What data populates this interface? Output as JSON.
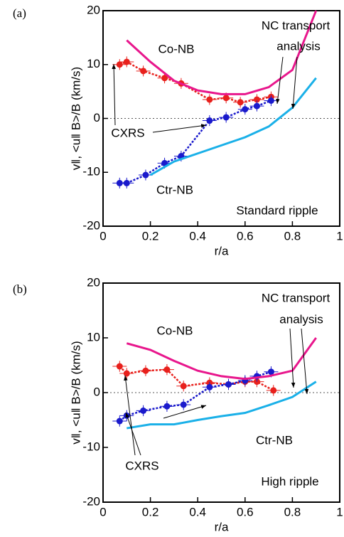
{
  "chart_data": [
    {
      "type": "line",
      "panel_label": "(a)",
      "xlabel": "r/a",
      "ylabel": "v‖, <u‖ B>/B (km/s)",
      "xlim": [
        0,
        1
      ],
      "ylim": [
        -20,
        20
      ],
      "xticks": [
        0,
        0.2,
        0.4,
        0.6,
        0.8,
        1
      ],
      "yticks": [
        -20,
        -10,
        0,
        10,
        20
      ],
      "zero_line": true,
      "annotations": [
        "Co-NB",
        "NC transport",
        "analysis",
        "CXRS",
        "Ctr-NB",
        "Standard ripple"
      ],
      "series": [
        {
          "kind": "errorbar",
          "color": "#e8201c",
          "x": [
            0.07,
            0.1,
            0.17,
            0.26,
            0.33,
            0.45,
            0.52,
            0.58,
            0.65,
            0.71
          ],
          "values": [
            10,
            10.5,
            8.8,
            7.5,
            6.5,
            3.5,
            3.8,
            3,
            3.5,
            4
          ],
          "xerr": 0.03,
          "yerr": 1
        },
        {
          "kind": "errorbar",
          "color": "#1a1acc",
          "x": [
            0.07,
            0.1,
            0.18,
            0.26,
            0.33,
            0.45,
            0.52,
            0.6,
            0.65,
            0.71
          ],
          "values": [
            -12,
            -12,
            -10.5,
            -8.3,
            -7,
            -0.4,
            0.2,
            1.7,
            2.3,
            3.3
          ],
          "xerr": 0.03,
          "yerr": 1
        },
        {
          "kind": "line",
          "color": "#e8168c",
          "x": [
            0.1,
            0.2,
            0.3,
            0.4,
            0.5,
            0.6,
            0.7,
            0.8,
            0.9
          ],
          "values": [
            14.5,
            10.5,
            7,
            5.2,
            4.5,
            4.5,
            5.8,
            9,
            20
          ]
        },
        {
          "kind": "line",
          "color": "#1ab0e8",
          "x": [
            0.2,
            0.3,
            0.4,
            0.5,
            0.6,
            0.7,
            0.8,
            0.9
          ],
          "values": [
            -10.5,
            -8,
            -6.5,
            -5,
            -3.5,
            -1.5,
            2,
            7.5
          ]
        }
      ]
    },
    {
      "type": "line",
      "panel_label": "(b)",
      "xlabel": "r/a",
      "ylabel": "v‖, <u‖ B>/B (km/s)",
      "xlim": [
        0,
        1
      ],
      "ylim": [
        -20,
        20
      ],
      "xticks": [
        0,
        0.2,
        0.4,
        0.6,
        0.8,
        1
      ],
      "yticks": [
        -20,
        -10,
        0,
        10,
        20
      ],
      "zero_line": true,
      "annotations": [
        "Co-NB",
        "NC transport",
        "analysis",
        "CXRS",
        "Ctr-NB",
        "High ripple"
      ],
      "series": [
        {
          "kind": "errorbar",
          "color": "#e8201c",
          "x": [
            0.07,
            0.1,
            0.18,
            0.27,
            0.34,
            0.45,
            0.53,
            0.6,
            0.65,
            0.72
          ],
          "values": [
            4.8,
            3.5,
            4,
            4.2,
            1.2,
            1.8,
            1.5,
            2,
            2,
            0.4
          ],
          "xerr": 0.03,
          "yerr": 1
        },
        {
          "kind": "errorbar",
          "color": "#1a1acc",
          "x": [
            0.07,
            0.1,
            0.17,
            0.27,
            0.34,
            0.45,
            0.53,
            0.6,
            0.65,
            0.71
          ],
          "values": [
            -5.2,
            -4.2,
            -3.3,
            -2.5,
            -2.2,
            1,
            1.5,
            2.2,
            3,
            3.8
          ],
          "xerr": 0.03,
          "yerr": 1
        },
        {
          "kind": "line",
          "color": "#e8168c",
          "x": [
            0.1,
            0.2,
            0.3,
            0.4,
            0.5,
            0.6,
            0.7,
            0.8,
            0.9
          ],
          "values": [
            9,
            7.8,
            5.8,
            4,
            3,
            2.5,
            3,
            4,
            10
          ]
        },
        {
          "kind": "line",
          "color": "#1ab0e8",
          "x": [
            0.1,
            0.2,
            0.3,
            0.4,
            0.5,
            0.6,
            0.7,
            0.8,
            0.9
          ],
          "values": [
            -6.5,
            -5.8,
            -5.8,
            -5,
            -4.3,
            -3.7,
            -2.3,
            -0.8,
            2
          ]
        }
      ]
    }
  ]
}
